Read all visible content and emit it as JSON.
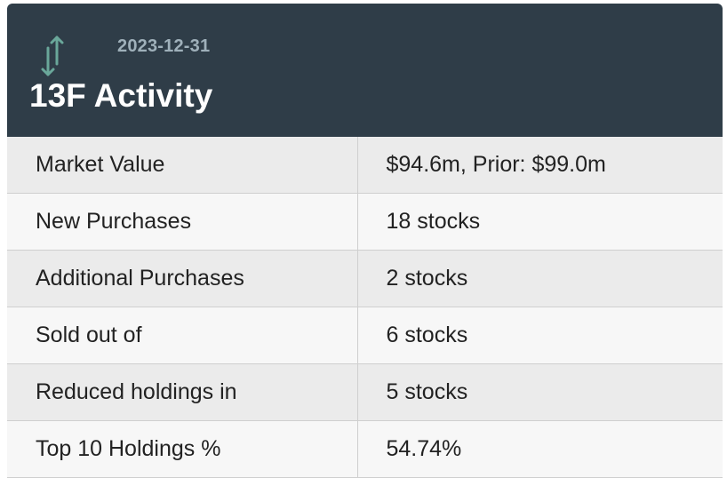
{
  "header": {
    "icon": "up-down-arrows-icon",
    "date": "2023-12-31",
    "title": "13F Activity",
    "bg_color": "#2f3d48",
    "icon_color": "#6aa79a"
  },
  "rows": [
    {
      "label": "Market Value",
      "value": "$94.6m, Prior: $99.0m"
    },
    {
      "label": "New Purchases",
      "value": "18 stocks"
    },
    {
      "label": "Additional Purchases",
      "value": "2 stocks"
    },
    {
      "label": "Sold out of",
      "value": "6 stocks"
    },
    {
      "label": "Reduced holdings in",
      "value": "5 stocks"
    },
    {
      "label": "Top 10 Holdings %",
      "value": "54.74%"
    }
  ]
}
